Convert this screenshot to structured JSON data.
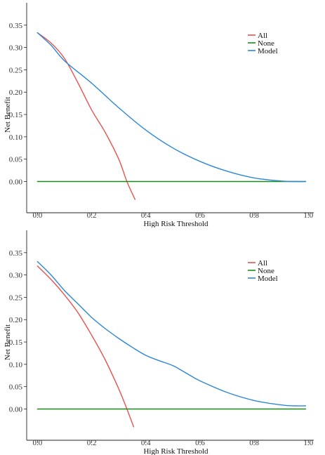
{
  "colors": {
    "all": "#e8534f",
    "none": "#1a8a1a",
    "model": "#2b87d8",
    "axis": "#222222"
  },
  "chart_data": [
    {
      "type": "line",
      "xlabel": "High Risk Threshold",
      "ylabel": "Net Benefit",
      "xlim": [
        -0.04,
        1.02
      ],
      "ylim": [
        -0.07,
        0.4
      ],
      "xticks": [
        0.0,
        0.2,
        0.4,
        0.6,
        0.8,
        1.0
      ],
      "xtick_labels": [
        "0.0",
        "0.2",
        "0.4",
        "0.6",
        "0.8",
        "1.0"
      ],
      "yticks": [
        0.0,
        0.05,
        0.1,
        0.15,
        0.2,
        0.25,
        0.3,
        0.35
      ],
      "ytick_labels": [
        "0.00",
        "0.05",
        "0.10",
        "0.15",
        "0.20",
        "0.25",
        "0.30",
        "0.35"
      ],
      "grid": false,
      "legend_position": "top-right",
      "series": [
        {
          "name": "All",
          "color_key": "all",
          "x": [
            0.0,
            0.05,
            0.1,
            0.15,
            0.2,
            0.25,
            0.3,
            0.33,
            0.36
          ],
          "y": [
            0.333,
            0.31,
            0.275,
            0.22,
            0.16,
            0.11,
            0.05,
            0.0,
            -0.04
          ]
        },
        {
          "name": "None",
          "color_key": "none",
          "x": [
            0.0,
            0.99
          ],
          "y": [
            0.0,
            0.0
          ]
        },
        {
          "name": "Model",
          "color_key": "model",
          "x": [
            0.0,
            0.05,
            0.1,
            0.2,
            0.3,
            0.4,
            0.5,
            0.6,
            0.7,
            0.8,
            0.9,
            0.95,
            0.99
          ],
          "y": [
            0.333,
            0.305,
            0.27,
            0.22,
            0.165,
            0.115,
            0.075,
            0.045,
            0.023,
            0.008,
            0.001,
            0.0,
            0.0
          ]
        }
      ]
    },
    {
      "type": "line",
      "xlabel": "High Risk Threshold",
      "ylabel": "Net Benefit",
      "xlim": [
        -0.04,
        1.02
      ],
      "ylim": [
        -0.07,
        0.4
      ],
      "xticks": [
        0.0,
        0.2,
        0.4,
        0.6,
        0.8,
        1.0
      ],
      "xtick_labels": [
        "0.0",
        "0.2",
        "0.4",
        "0.6",
        "0.8",
        "1.0"
      ],
      "yticks": [
        0.0,
        0.05,
        0.1,
        0.15,
        0.2,
        0.25,
        0.3,
        0.35
      ],
      "ytick_labels": [
        "0.00",
        "0.05",
        "0.10",
        "0.15",
        "0.20",
        "0.25",
        "0.30",
        "0.35"
      ],
      "grid": false,
      "legend_position": "top-right",
      "series": [
        {
          "name": "All",
          "color_key": "all",
          "x": [
            0.0,
            0.05,
            0.1,
            0.15,
            0.2,
            0.25,
            0.3,
            0.33,
            0.355
          ],
          "y": [
            0.32,
            0.29,
            0.255,
            0.215,
            0.165,
            0.11,
            0.045,
            0.0,
            -0.04
          ]
        },
        {
          "name": "None",
          "color_key": "none",
          "x": [
            0.0,
            0.99
          ],
          "y": [
            0.0,
            0.0
          ]
        },
        {
          "name": "Model",
          "color_key": "model",
          "x": [
            0.0,
            0.05,
            0.1,
            0.15,
            0.2,
            0.25,
            0.3,
            0.35,
            0.4,
            0.45,
            0.5,
            0.55,
            0.6,
            0.7,
            0.8,
            0.9,
            0.95,
            0.99
          ],
          "y": [
            0.33,
            0.3,
            0.265,
            0.235,
            0.205,
            0.18,
            0.158,
            0.138,
            0.12,
            0.108,
            0.097,
            0.08,
            0.063,
            0.037,
            0.019,
            0.009,
            0.007,
            0.007
          ]
        }
      ]
    }
  ]
}
